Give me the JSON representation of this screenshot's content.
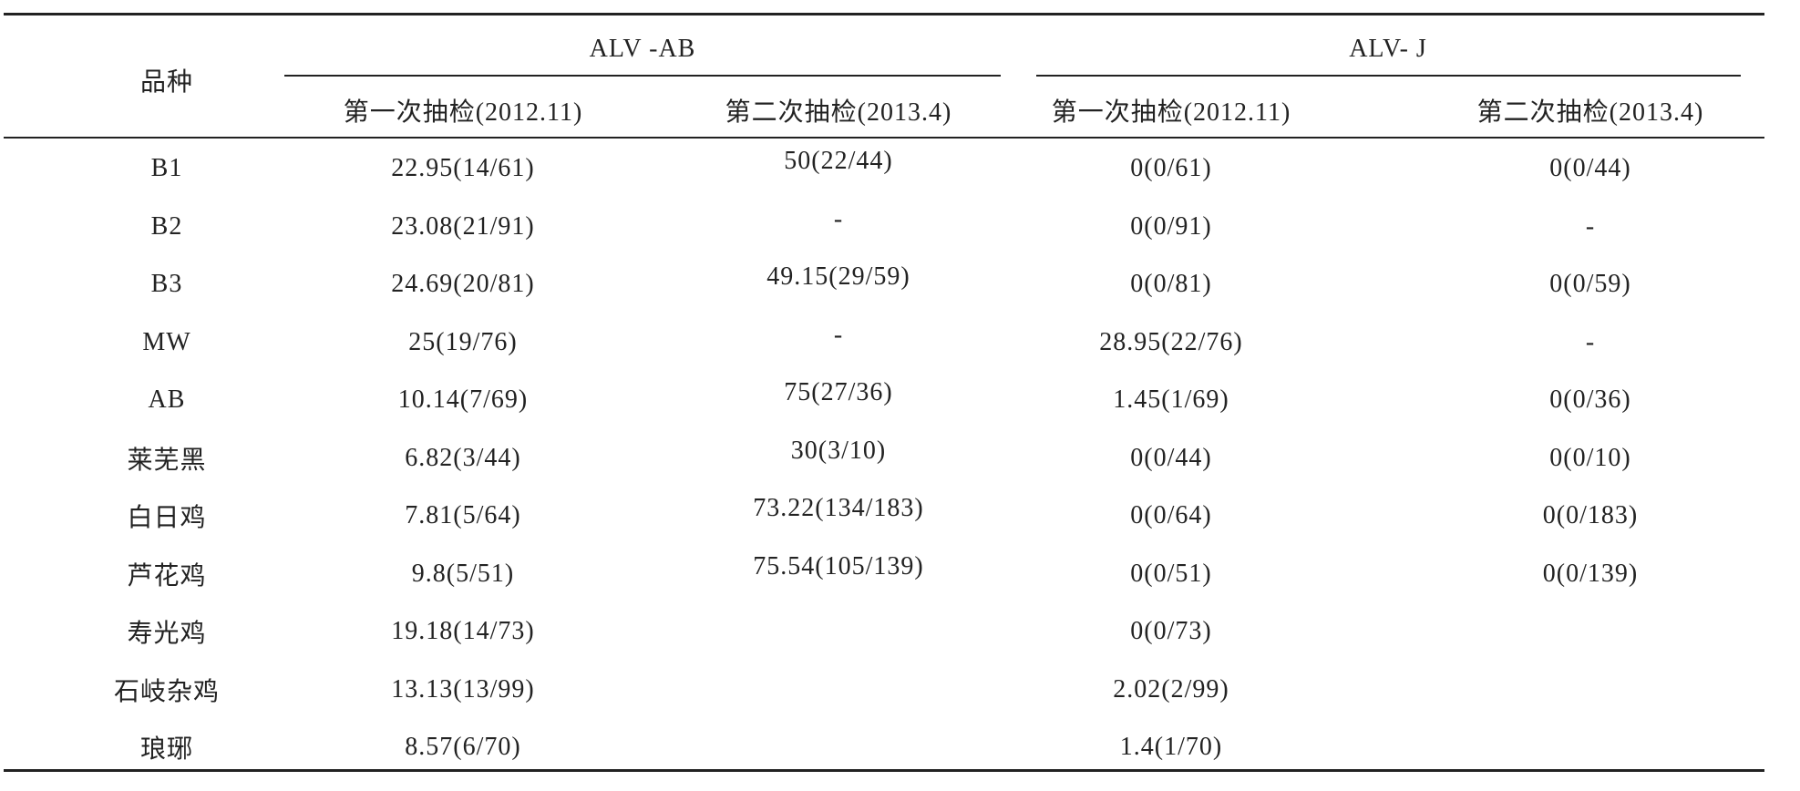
{
  "table": {
    "row_header": "品种",
    "groups": [
      "ALV -AB",
      "ALV- J"
    ],
    "columns": [
      "第一次抽检(2012.11)",
      "第二次抽检(2013.4)",
      "第一次抽检(2012.11)",
      "第二次抽检(2013.4)"
    ],
    "rows": [
      [
        "B1",
        "22.95(14/61)",
        "50(22/44)",
        "0(0/61)",
        "0(0/44)"
      ],
      [
        "B2",
        "23.08(21/91)",
        "-",
        "0(0/91)",
        "-"
      ],
      [
        "B3",
        "24.69(20/81)",
        "49.15(29/59)",
        "0(0/81)",
        "0(0/59)"
      ],
      [
        "MW",
        "25(19/76)",
        "-",
        "28.95(22/76)",
        "-"
      ],
      [
        "AB",
        "10.14(7/69)",
        "75(27/36)",
        "1.45(1/69)",
        "0(0/36)"
      ],
      [
        "莱芜黑",
        "6.82(3/44)",
        "30(3/10)",
        "0(0/44)",
        "0(0/10)"
      ],
      [
        "白日鸡",
        "7.81(5/64)",
        "73.22(134/183)",
        "0(0/64)",
        "0(0/183)"
      ],
      [
        "芦花鸡",
        "9.8(5/51)",
        "75.54(105/139)",
        "0(0/51)",
        "0(0/139)"
      ],
      [
        "寿光鸡",
        "19.18(14/73)",
        null,
        "0(0/73)",
        null
      ],
      [
        "石岐杂鸡",
        "13.13(13/99)",
        null,
        "2.02(2/99)",
        null
      ],
      [
        "琅琊",
        "8.57(6/70)",
        null,
        "1.4(1/70)",
        null
      ]
    ]
  }
}
